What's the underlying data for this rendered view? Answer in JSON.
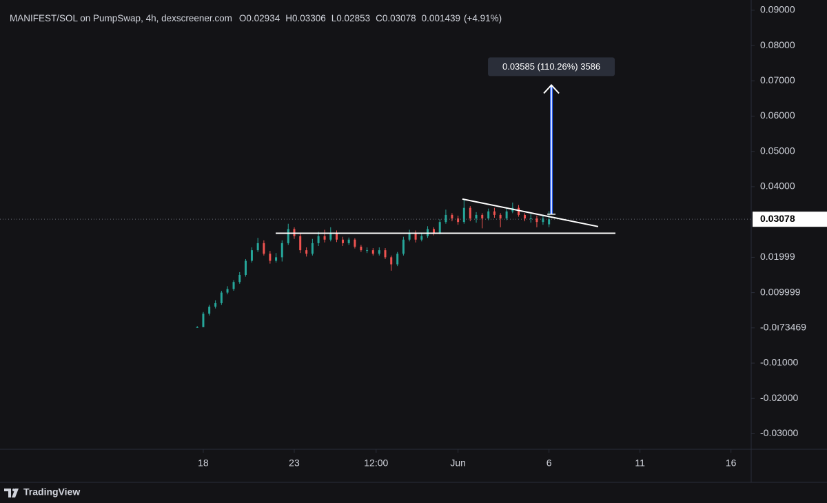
{
  "chart_data": {
    "type": "candlestick",
    "header": {
      "symbol": "MANIFEST/SOL on PumpSwap, 4h, dexscreener.com",
      "ohlc": [
        {
          "label": "O",
          "value": 0.02934
        },
        {
          "label": "H",
          "value": 0.03306
        },
        {
          "label": "L",
          "value": 0.02853
        },
        {
          "label": "C",
          "value": 0.03078
        }
      ],
      "change": 0.001439,
      "change_pct": "(+4.91%)"
    },
    "x": [
      17.67,
      18,
      18.33,
      18.67,
      19,
      19.33,
      19.67,
      20,
      20.33,
      20.67,
      21,
      21.33,
      21.67,
      22,
      22.33,
      22.67,
      23,
      23.33,
      23.67,
      24,
      24.33,
      24.67,
      25,
      25.33,
      25.67,
      26,
      26.33,
      26.67,
      27,
      27.33,
      27.67,
      28,
      28.33,
      28.67,
      29,
      29.33,
      29.67,
      30,
      30.33,
      30.67,
      31,
      31.33,
      31.67,
      32,
      32.33,
      32.67,
      33,
      33.33,
      33.67,
      34,
      34.33,
      34.67,
      35,
      35.33,
      35.67,
      36,
      36.33,
      36.67,
      37
    ],
    "open": [
      0,
      0.0002,
      0.004,
      0.006,
      0.007,
      0.01,
      0.011,
      0.013,
      0.015,
      0.019,
      0.022,
      0.024,
      0.021,
      0.019,
      0.02,
      0.024,
      0.028,
      0.026,
      0.022,
      0.021,
      0.024,
      0.026,
      0.025,
      0.027,
      0.025,
      0.024,
      0.025,
      0.023,
      0.022,
      0.022,
      0.021,
      0.022,
      0.02,
      0.018,
      0.021,
      0.025,
      0.027,
      0.025,
      0.026,
      0.028,
      0.027,
      0.03,
      0.032,
      0.031,
      0.03,
      0.034,
      0.031,
      0.032,
      0.031,
      0.033,
      0.032,
      0.031,
      0.033,
      0.034,
      0.032,
      0.031,
      0.031,
      0.03,
      0.02934
    ],
    "high": [
      0.0005,
      0.0045,
      0.0065,
      0.0078,
      0.0105,
      0.0118,
      0.0135,
      0.0158,
      0.0195,
      0.0228,
      0.0255,
      0.0248,
      0.0218,
      0.0212,
      0.0248,
      0.0295,
      0.0285,
      0.0268,
      0.0228,
      0.0252,
      0.0272,
      0.0278,
      0.0285,
      0.0276,
      0.0258,
      0.0256,
      0.0254,
      0.0235,
      0.0228,
      0.0226,
      0.0228,
      0.0226,
      0.0205,
      0.0215,
      0.0258,
      0.0278,
      0.0276,
      0.0268,
      0.0288,
      0.0285,
      0.0308,
      0.0335,
      0.0325,
      0.0318,
      0.0365,
      0.0345,
      0.0328,
      0.0325,
      0.0338,
      0.034,
      0.0325,
      0.0338,
      0.0355,
      0.0348,
      0.0325,
      0.0322,
      0.0318,
      0.0318,
      0.03306
    ],
    "low": [
      0,
      0.0002,
      0.0035,
      0.0055,
      0.0065,
      0.0095,
      0.0105,
      0.0125,
      0.0145,
      0.0185,
      0.0215,
      0.0205,
      0.0182,
      0.0185,
      0.0188,
      0.0235,
      0.0252,
      0.0212,
      0.0202,
      0.0205,
      0.0232,
      0.0242,
      0.0245,
      0.0243,
      0.0232,
      0.0235,
      0.0225,
      0.0215,
      0.0212,
      0.0205,
      0.0205,
      0.0195,
      0.0162,
      0.0175,
      0.0205,
      0.0245,
      0.0242,
      0.0245,
      0.0255,
      0.0262,
      0.0265,
      0.0295,
      0.0302,
      0.0292,
      0.0295,
      0.0302,
      0.0298,
      0.0282,
      0.0305,
      0.0312,
      0.0285,
      0.0305,
      0.0325,
      0.0315,
      0.0302,
      0.0298,
      0.0285,
      0.0292,
      0.02853
    ],
    "close": [
      0.0002,
      0.004,
      0.006,
      0.007,
      0.01,
      0.011,
      0.013,
      0.015,
      0.019,
      0.022,
      0.024,
      0.021,
      0.019,
      0.02,
      0.024,
      0.028,
      0.026,
      0.022,
      0.021,
      0.024,
      0.026,
      0.025,
      0.027,
      0.025,
      0.024,
      0.025,
      0.023,
      0.022,
      0.022,
      0.021,
      0.022,
      0.02,
      0.018,
      0.021,
      0.025,
      0.027,
      0.025,
      0.026,
      0.028,
      0.027,
      0.03,
      0.032,
      0.031,
      0.03,
      0.034,
      0.031,
      0.032,
      0.031,
      0.033,
      0.032,
      0.031,
      0.033,
      0.034,
      0.032,
      0.031,
      0.031,
      0.03,
      0.031,
      0.03078
    ],
    "up_color": "#26a69a",
    "down_color": "#ef5350",
    "last_price": 0.03078,
    "xlim": [
      6.83,
      48.11
    ],
    "ylim": [
      -0.0344,
      0.0929
    ],
    "xticks": [
      18,
      {
        "value": 23,
        "label": "23"
      },
      {
        "value": 27.5,
        "label": "12:00"
      },
      {
        "value": 32,
        "label": "Jun"
      },
      {
        "value": 37,
        "label": "6"
      },
      {
        "value": 42,
        "label": "11"
      },
      {
        "value": 47,
        "label": "16"
      }
    ],
    "yticks": [
      {
        "value": 0.09,
        "label": "0.09000"
      },
      {
        "value": 0.08,
        "label": "0.08000"
      },
      {
        "value": 0.07,
        "label": "0.07000"
      },
      {
        "value": 0.06,
        "label": "0.06000"
      },
      {
        "value": 0.05,
        "label": "0.05000"
      },
      {
        "value": 0.04,
        "label": "0.04000"
      },
      0.01999,
      0.009999,
      {
        "value": -1.73469e-06,
        "label": "-0.0ı73469"
      },
      {
        "value": -0.01,
        "label": "-0.01000"
      },
      {
        "value": -0.02,
        "label": "-0.02000"
      },
      {
        "value": -0.03,
        "label": "-0.03000"
      }
    ],
    "annotations": {
      "support_line": {
        "x": [
          21.98,
          40.65
        ],
        "y": [
          0.0268,
          0.0268
        ]
      },
      "trend_line": {
        "x": [
          32.24,
          39.7
        ],
        "y": [
          0.0365,
          0.0287
        ]
      },
      "measure": {
        "x": 37.13,
        "y": [
          0.0322,
          0.0688
        ],
        "label": "0.03585 (110.26%) 3586"
      }
    },
    "footer": "TradingView"
  }
}
